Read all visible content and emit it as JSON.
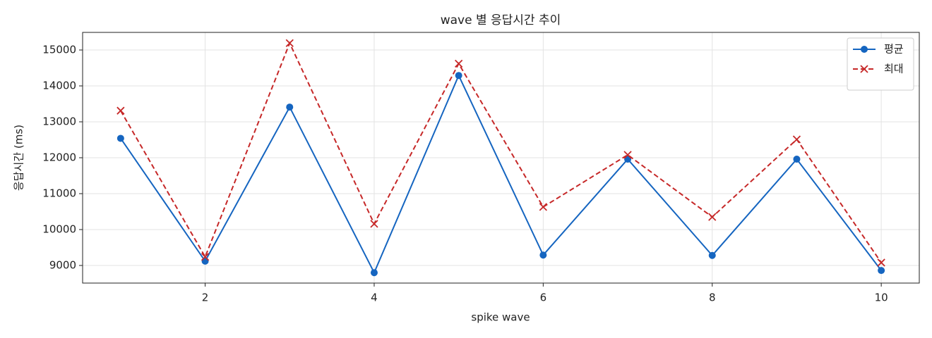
{
  "chart_data": {
    "type": "line",
    "title": "wave 별 응답시간 추이",
    "xlabel": "spike wave",
    "ylabel": "응답시간 (ms)",
    "x": [
      1,
      2,
      3,
      4,
      5,
      6,
      7,
      8,
      9,
      10
    ],
    "series": [
      {
        "name": "평균",
        "color": "#1565c0",
        "linestyle": "solid",
        "marker": "circle",
        "values": [
          12540,
          9120,
          13410,
          8800,
          14290,
          9290,
          11960,
          9280,
          11960,
          8860
        ]
      },
      {
        "name": "최대",
        "color": "#c62828",
        "linestyle": "dashed",
        "marker": "x",
        "values": [
          13310,
          9240,
          15190,
          10160,
          14620,
          10630,
          12080,
          10350,
          12510,
          9080
        ]
      }
    ],
    "xlim": [
      0.55,
      10.45
    ],
    "xticks": [
      2,
      4,
      6,
      8,
      10
    ],
    "ylim": [
      8510,
      15490
    ],
    "yticks": [
      9000,
      10000,
      11000,
      12000,
      13000,
      14000,
      15000
    ],
    "grid": true,
    "legend": "upper-right"
  }
}
